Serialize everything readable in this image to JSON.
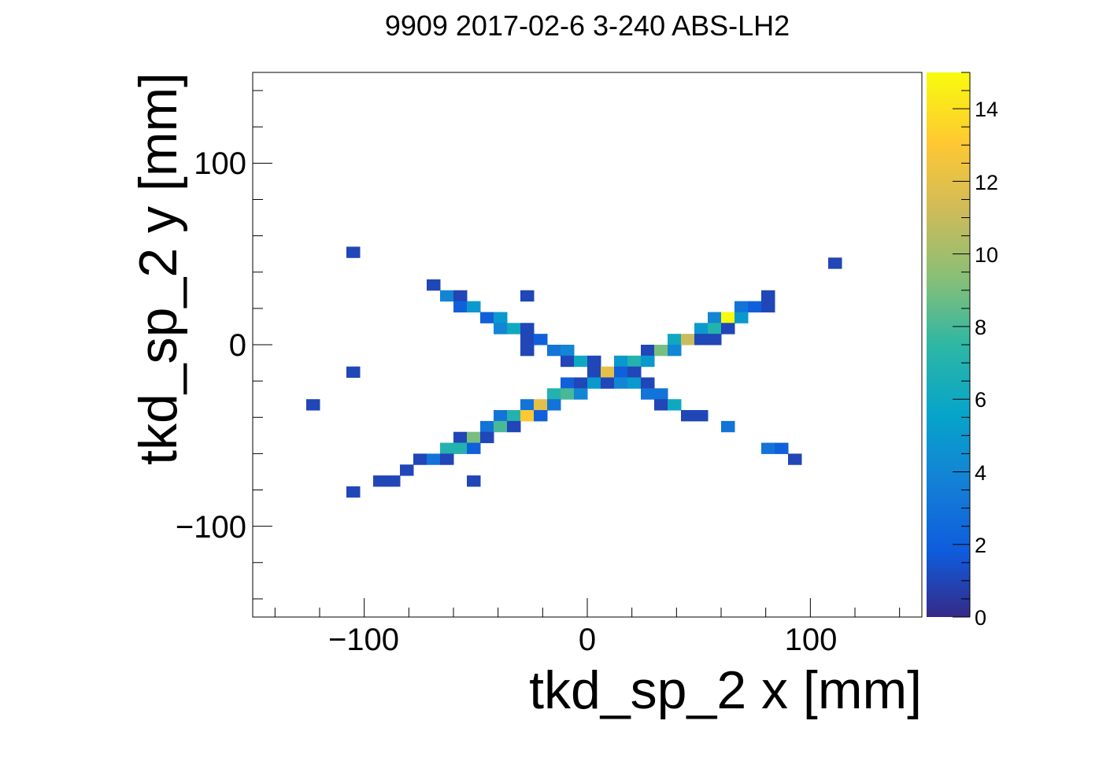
{
  "chart_data": {
    "type": "heatmap",
    "title": "9909 2017-02-6 3-240 ABS-LH2",
    "xlabel": "tkd_sp_2 x [mm]",
    "ylabel": "tkd_sp_2 y [mm]",
    "xlim": [
      -150,
      150
    ],
    "ylim": [
      -150,
      150
    ],
    "x_ticks": [
      -100,
      0,
      100
    ],
    "x_tick_labels": [
      "−100",
      "0",
      "100"
    ],
    "y_ticks": [
      -100,
      0,
      100
    ],
    "y_tick_labels": [
      "−100",
      "0",
      "100"
    ],
    "bin_width": 6,
    "colorbar": {
      "range": [
        0,
        15
      ],
      "ticks": [
        0,
        2,
        4,
        6,
        8,
        10,
        12,
        14
      ],
      "tick_labels": [
        "0",
        "2",
        "4",
        "6",
        "8",
        "10",
        "12",
        "14"
      ]
    },
    "cells": [
      {
        "x": -105,
        "y": 51,
        "z": 1
      },
      {
        "x": 111,
        "y": 45,
        "z": 1
      },
      {
        "x": -69,
        "y": 33,
        "z": 1
      },
      {
        "x": -63,
        "y": 27,
        "z": 4
      },
      {
        "x": -57,
        "y": 27,
        "z": 1
      },
      {
        "x": -27,
        "y": 27,
        "z": 1
      },
      {
        "x": 81,
        "y": 27,
        "z": 1
      },
      {
        "x": -57,
        "y": 21,
        "z": 2
      },
      {
        "x": -51,
        "y": 21,
        "z": 5
      },
      {
        "x": 69,
        "y": 21,
        "z": 3
      },
      {
        "x": 75,
        "y": 21,
        "z": 2
      },
      {
        "x": 81,
        "y": 21,
        "z": 1
      },
      {
        "x": -45,
        "y": 15,
        "z": 2
      },
      {
        "x": -39,
        "y": 15,
        "z": 5
      },
      {
        "x": 57,
        "y": 15,
        "z": 4
      },
      {
        "x": 63,
        "y": 15,
        "z": 15
      },
      {
        "x": 69,
        "y": 15,
        "z": 5
      },
      {
        "x": -39,
        "y": 9,
        "z": 4
      },
      {
        "x": -33,
        "y": 9,
        "z": 6
      },
      {
        "x": -27,
        "y": 9,
        "z": 1
      },
      {
        "x": 51,
        "y": 9,
        "z": 5
      },
      {
        "x": 57,
        "y": 9,
        "z": 7
      },
      {
        "x": 63,
        "y": 9,
        "z": 1
      },
      {
        "x": -27,
        "y": 3,
        "z": 1
      },
      {
        "x": -21,
        "y": 3,
        "z": 2
      },
      {
        "x": 39,
        "y": 3,
        "z": 6
      },
      {
        "x": 45,
        "y": 3,
        "z": 11
      },
      {
        "x": 51,
        "y": 3,
        "z": 1
      },
      {
        "x": 57,
        "y": 3,
        "z": 1
      },
      {
        "x": -27,
        "y": -3,
        "z": 1
      },
      {
        "x": -15,
        "y": -3,
        "z": 3
      },
      {
        "x": -9,
        "y": -3,
        "z": 4
      },
      {
        "x": 27,
        "y": -3,
        "z": 1
      },
      {
        "x": 33,
        "y": -3,
        "z": 9
      },
      {
        "x": 39,
        "y": -3,
        "z": 4
      },
      {
        "x": -9,
        "y": -9,
        "z": 1
      },
      {
        "x": -3,
        "y": -9,
        "z": 6
      },
      {
        "x": 3,
        "y": -9,
        "z": 1
      },
      {
        "x": 15,
        "y": -9,
        "z": 5
      },
      {
        "x": 21,
        "y": -9,
        "z": 7
      },
      {
        "x": 27,
        "y": -9,
        "z": 5
      },
      {
        "x": -105,
        "y": -15,
        "z": 1
      },
      {
        "x": 3,
        "y": -15,
        "z": 1
      },
      {
        "x": 9,
        "y": -15,
        "z": 12
      },
      {
        "x": 15,
        "y": -15,
        "z": 2
      },
      {
        "x": 21,
        "y": -15,
        "z": 1
      },
      {
        "x": -9,
        "y": -21,
        "z": 2
      },
      {
        "x": -3,
        "y": -21,
        "z": 1
      },
      {
        "x": 3,
        "y": -21,
        "z": 5
      },
      {
        "x": 9,
        "y": -21,
        "z": 1
      },
      {
        "x": 15,
        "y": -21,
        "z": 4
      },
      {
        "x": 21,
        "y": -21,
        "z": 5
      },
      {
        "x": 27,
        "y": -21,
        "z": 1
      },
      {
        "x": -15,
        "y": -27,
        "z": 7
      },
      {
        "x": -9,
        "y": -27,
        "z": 8
      },
      {
        "x": -3,
        "y": -27,
        "z": 4
      },
      {
        "x": 27,
        "y": -27,
        "z": 3
      },
      {
        "x": 33,
        "y": -27,
        "z": 3
      },
      {
        "x": -123,
        "y": -33,
        "z": 1
      },
      {
        "x": -27,
        "y": -33,
        "z": 3
      },
      {
        "x": -21,
        "y": -33,
        "z": 12
      },
      {
        "x": -15,
        "y": -33,
        "z": 3
      },
      {
        "x": 33,
        "y": -33,
        "z": 1
      },
      {
        "x": 39,
        "y": -33,
        "z": 6
      },
      {
        "x": -39,
        "y": -39,
        "z": 3
      },
      {
        "x": -33,
        "y": -39,
        "z": 7
      },
      {
        "x": -27,
        "y": -39,
        "z": 13
      },
      {
        "x": -21,
        "y": -39,
        "z": 2
      },
      {
        "x": 45,
        "y": -39,
        "z": 1
      },
      {
        "x": 51,
        "y": -39,
        "z": 1
      },
      {
        "x": -45,
        "y": -45,
        "z": 3
      },
      {
        "x": -39,
        "y": -45,
        "z": 8
      },
      {
        "x": -33,
        "y": -45,
        "z": 1
      },
      {
        "x": 63,
        "y": -45,
        "z": 3
      },
      {
        "x": -57,
        "y": -51,
        "z": 1
      },
      {
        "x": -51,
        "y": -51,
        "z": 9
      },
      {
        "x": -45,
        "y": -51,
        "z": 1
      },
      {
        "x": -63,
        "y": -57,
        "z": 7
      },
      {
        "x": -57,
        "y": -57,
        "z": 7
      },
      {
        "x": -51,
        "y": -57,
        "z": 2
      },
      {
        "x": 81,
        "y": -57,
        "z": 3
      },
      {
        "x": 87,
        "y": -57,
        "z": 2
      },
      {
        "x": -75,
        "y": -63,
        "z": 1
      },
      {
        "x": -69,
        "y": -63,
        "z": 3
      },
      {
        "x": -63,
        "y": -63,
        "z": 1
      },
      {
        "x": 93,
        "y": -63,
        "z": 1
      },
      {
        "x": -81,
        "y": -69,
        "z": 1
      },
      {
        "x": -93,
        "y": -75,
        "z": 1
      },
      {
        "x": -87,
        "y": -75,
        "z": 1
      },
      {
        "x": -51,
        "y": -75,
        "z": 1
      },
      {
        "x": -105,
        "y": -81,
        "z": 1
      }
    ]
  }
}
